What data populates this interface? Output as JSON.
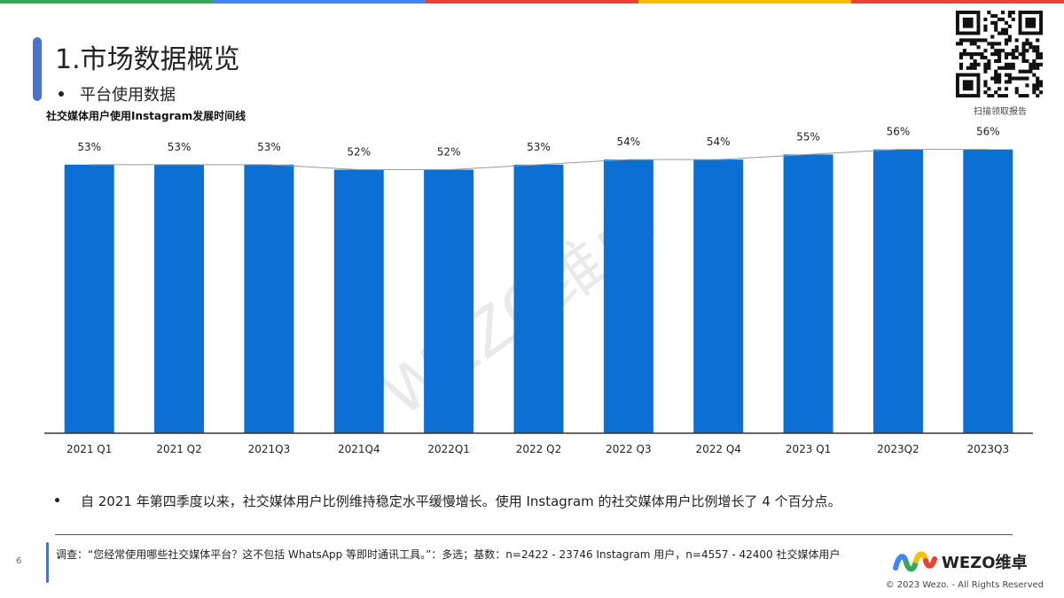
{
  "header": {
    "title": "1.市场数据概览",
    "subtitle": "平台使用数据",
    "top_bar_colors": [
      "#34a853",
      "#4285f4",
      "#ea4335",
      "#fbbc05",
      "#ea4335"
    ]
  },
  "qr": {
    "caption": "扫描领取报告"
  },
  "chart_data": {
    "type": "bar",
    "title": "社交媒体用户使用Instagram发展时间线",
    "categories": [
      "2021 Q1",
      "2021 Q2",
      "2021Q3",
      "2021Q4",
      "2022Q1",
      "2022 Q2",
      "2022 Q3",
      "2022 Q4",
      "2023 Q1",
      "2023Q2",
      "2023Q3"
    ],
    "values": [
      53,
      53,
      53,
      52,
      52,
      53,
      54,
      54,
      55,
      56,
      56
    ],
    "labels": [
      "53%",
      "53%",
      "53%",
      "52%",
      "52%",
      "53%",
      "54%",
      "54%",
      "55%",
      "56%",
      "56%"
    ],
    "unit": "%",
    "bar_color": "#0b6fd3",
    "trend_line": true,
    "grid": false,
    "legend": "none"
  },
  "note": {
    "text": "自 2021 年第四季度以来，社交媒体用户比例维持稳定水平缓慢增长。使用 Instagram 的社交媒体用户比例增长了 4 个百分点。"
  },
  "footer": {
    "page_number": "6",
    "source": "调查：“您经常使用哪些社交媒体平台？这不包括 WhatsApp 等即时通讯工具。”：多选；基数：n=2422 - 23746 Instagram 用户，n=4557 - 42400 社交媒体用户",
    "logo_text": "WEZO维卓",
    "copyright": "© 2023 Wezo. - All Rights Reserved"
  }
}
